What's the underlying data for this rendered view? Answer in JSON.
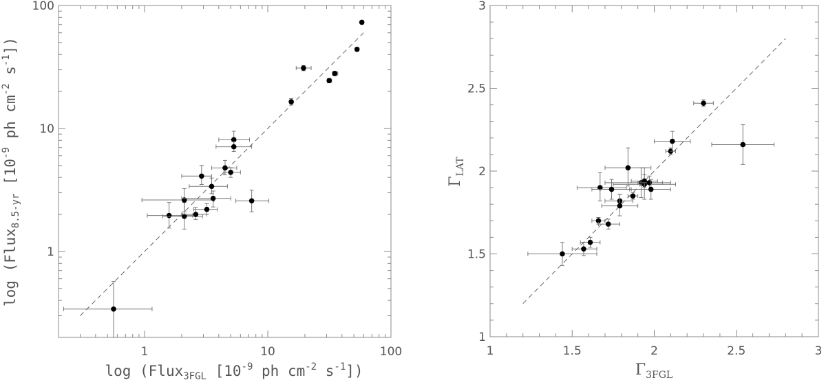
{
  "chart_data": [
    {
      "type": "scatter",
      "title": "",
      "xlabel": {
        "prefix": "log (Flux",
        "sub": "3FGL",
        "suffix": " [10",
        "sup1": "-9",
        "mid": " ph cm",
        "sup2": "-2",
        "mid2": " s",
        "sup3": "-1",
        "end": "])"
      },
      "ylabel": {
        "prefix": "log (Flux",
        "sub": "8.5-yr",
        "suffix": " [10",
        "sup1": "-9",
        "mid": " ph cm",
        "sup2": "-2",
        "mid2": " s",
        "sup3": "-1",
        "end": "])"
      },
      "xscale": "log",
      "yscale": "log",
      "xlim": [
        0.2,
        100
      ],
      "ylim": [
        0.2,
        100
      ],
      "xticks": [
        1,
        10,
        100
      ],
      "xtick_labels": [
        "1",
        "10",
        "100"
      ],
      "yticks": [
        1,
        10,
        100
      ],
      "ytick_labels": [
        "1",
        "10",
        "100"
      ],
      "reference_line": {
        "style": "dashed",
        "from": [
          0.3,
          0.3
        ],
        "to": [
          60,
          60
        ]
      },
      "points": [
        {
          "x": 0.56,
          "y": 0.34,
          "xerr": [
            0.22,
            1.15
          ],
          "yerr": [
            0.2,
            0.57
          ]
        },
        {
          "x": 1.58,
          "y": 1.96,
          "xerr": [
            1.05,
            2.45
          ],
          "yerr": [
            1.55,
            2.5
          ]
        },
        {
          "x": 2.1,
          "y": 1.93,
          "xerr": [
            1.4,
            2.95
          ],
          "yerr": [
            1.52,
            2.5
          ]
        },
        {
          "x": 2.1,
          "y": 2.62,
          "xerr": [
            0.95,
            3.65
          ],
          "yerr": [
            2.1,
            3.25
          ]
        },
        {
          "x": 2.6,
          "y": 2.0,
          "xerr": [
            2.0,
            3.2
          ],
          "yerr": [
            1.82,
            2.28
          ]
        },
        {
          "x": 2.9,
          "y": 4.1,
          "xerr": [
            2.0,
            3.5
          ],
          "yerr": [
            3.5,
            5.0
          ]
        },
        {
          "x": 3.2,
          "y": 2.2,
          "xerr": [
            2.5,
            3.9
          ],
          "yerr": [
            2.0,
            2.45
          ]
        },
        {
          "x": 3.5,
          "y": 3.38,
          "xerr": [
            2.3,
            4.7
          ],
          "yerr": [
            2.95,
            3.95
          ]
        },
        {
          "x": 3.6,
          "y": 2.7,
          "xerr": [
            2.0,
            5.0
          ],
          "yerr": [
            2.3,
            3.1
          ]
        },
        {
          "x": 4.5,
          "y": 4.78,
          "xerr": [
            3.5,
            5.6
          ],
          "yerr": [
            4.2,
            5.5
          ]
        },
        {
          "x": 5.0,
          "y": 4.4,
          "xerr": [
            4.4,
            6.0
          ],
          "yerr": [
            4.0,
            4.8
          ]
        },
        {
          "x": 5.3,
          "y": 8.1,
          "xerr": [
            4.0,
            7.1
          ],
          "yerr": [
            7.0,
            9.5
          ]
        },
        {
          "x": 5.3,
          "y": 7.1,
          "xerr": [
            3.8,
            7.4
          ],
          "yerr": [
            6.5,
            7.8
          ]
        },
        {
          "x": 7.4,
          "y": 2.58,
          "xerr": [
            5.5,
            10.2
          ],
          "yerr": [
            2.1,
            3.15
          ]
        },
        {
          "x": 15.5,
          "y": 16.5,
          "xerr": [
            15.0,
            16.0
          ],
          "yerr": [
            15.5,
            17.5
          ]
        },
        {
          "x": 19.5,
          "y": 31.0,
          "xerr": [
            17.0,
            22.5
          ],
          "yerr": [
            29.5,
            32.5
          ]
        },
        {
          "x": 31.5,
          "y": 24.5,
          "xerr": [
            30.5,
            33.0
          ],
          "yerr": [
            23.5,
            25.5
          ]
        },
        {
          "x": 35.0,
          "y": 28.0,
          "xerr": [
            33.5,
            37.0
          ],
          "yerr": [
            26.8,
            29.2
          ]
        },
        {
          "x": 53.0,
          "y": 44.0,
          "xerr": [
            51.5,
            55.0
          ],
          "yerr": [
            42.5,
            45.5
          ]
        },
        {
          "x": 58.0,
          "y": 73.0,
          "xerr": [
            56.5,
            60.0
          ],
          "yerr": [
            71.0,
            75.0
          ]
        }
      ]
    },
    {
      "type": "scatter",
      "title": "",
      "xlabel": {
        "symbol": "Γ",
        "sub": "3FGL"
      },
      "ylabel": {
        "symbol": "Γ",
        "sub": "LAT"
      },
      "xscale": "linear",
      "yscale": "linear",
      "xlim": [
        1,
        3
      ],
      "ylim": [
        1,
        3
      ],
      "xticks": [
        1,
        1.5,
        2,
        2.5,
        3
      ],
      "xtick_labels": [
        "1",
        "1.5",
        "2",
        "2.5",
        "3"
      ],
      "yticks": [
        1,
        1.5,
        2,
        2.5,
        3
      ],
      "ytick_labels": [
        "1",
        "1.5",
        "2",
        "2.5",
        "3"
      ],
      "reference_line": {
        "style": "dashed",
        "from": [
          1.2,
          1.2
        ],
        "to": [
          2.8,
          2.8
        ]
      },
      "points": [
        {
          "x": 1.44,
          "y": 1.5,
          "xerr": [
            1.23,
            1.65
          ],
          "yerr": [
            1.43,
            1.57
          ]
        },
        {
          "x": 1.57,
          "y": 1.53,
          "xerr": [
            1.5,
            1.65
          ],
          "yerr": [
            1.49,
            1.57
          ]
        },
        {
          "x": 1.61,
          "y": 1.57,
          "xerr": [
            1.55,
            1.67
          ],
          "yerr": [
            1.54,
            1.6
          ]
        },
        {
          "x": 1.66,
          "y": 1.7,
          "xerr": [
            1.62,
            1.7
          ],
          "yerr": [
            1.68,
            1.72
          ]
        },
        {
          "x": 1.67,
          "y": 1.9,
          "xerr": [
            1.53,
            1.83
          ],
          "yerr": [
            1.82,
            1.99
          ]
        },
        {
          "x": 1.72,
          "y": 1.68,
          "xerr": [
            1.66,
            1.79
          ],
          "yerr": [
            1.65,
            1.71
          ]
        },
        {
          "x": 1.74,
          "y": 1.89,
          "xerr": [
            1.62,
            1.86
          ],
          "yerr": [
            1.83,
            1.95
          ]
        },
        {
          "x": 1.79,
          "y": 1.82,
          "xerr": [
            1.7,
            1.87
          ],
          "yerr": [
            1.78,
            1.86
          ]
        },
        {
          "x": 1.79,
          "y": 1.79,
          "xerr": [
            1.68,
            1.9
          ],
          "yerr": [
            1.73,
            1.86
          ]
        },
        {
          "x": 1.84,
          "y": 2.02,
          "xerr": [
            1.7,
            1.98
          ],
          "yerr": [
            1.91,
            2.14
          ]
        },
        {
          "x": 1.87,
          "y": 1.85,
          "xerr": [
            1.84,
            1.9
          ],
          "yerr": [
            1.83,
            1.87
          ]
        },
        {
          "x": 1.92,
          "y": 1.93,
          "xerr": [
            1.7,
            2.1
          ],
          "yerr": [
            1.84,
            2.02
          ]
        },
        {
          "x": 1.94,
          "y": 1.92,
          "xerr": [
            1.75,
            2.13
          ],
          "yerr": [
            1.83,
            2.02
          ]
        },
        {
          "x": 1.94,
          "y": 1.94,
          "xerr": [
            1.86,
            2.02
          ],
          "yerr": [
            1.9,
            1.98
          ]
        },
        {
          "x": 1.97,
          "y": 1.93,
          "xerr": [
            1.9,
            2.05
          ],
          "yerr": [
            1.89,
            1.97
          ]
        },
        {
          "x": 1.98,
          "y": 1.89,
          "xerr": [
            1.85,
            2.1
          ],
          "yerr": [
            1.83,
            1.95
          ]
        },
        {
          "x": 2.1,
          "y": 2.12,
          "xerr": [
            2.07,
            2.13
          ],
          "yerr": [
            2.1,
            2.14
          ]
        },
        {
          "x": 2.11,
          "y": 2.18,
          "xerr": [
            2.0,
            2.22
          ],
          "yerr": [
            2.12,
            2.24
          ]
        },
        {
          "x": 2.3,
          "y": 2.41,
          "xerr": [
            2.24,
            2.36
          ],
          "yerr": [
            2.39,
            2.43
          ]
        },
        {
          "x": 2.54,
          "y": 2.16,
          "xerr": [
            2.35,
            2.73
          ],
          "yerr": [
            2.04,
            2.28
          ]
        }
      ]
    }
  ]
}
